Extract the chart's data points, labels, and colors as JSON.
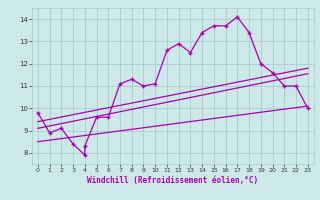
{
  "xlabel": "Windchill (Refroidissement éolien,°C)",
  "bg_color": "#cce8e8",
  "grid_color": "#aacccc",
  "line_color": "#aa00aa",
  "xlim": [
    -0.5,
    23.5
  ],
  "ylim": [
    7.5,
    14.5
  ],
  "yticks": [
    8,
    9,
    10,
    11,
    12,
    13,
    14
  ],
  "xticks": [
    0,
    1,
    2,
    3,
    4,
    5,
    6,
    7,
    8,
    9,
    10,
    11,
    12,
    13,
    14,
    15,
    16,
    17,
    18,
    19,
    20,
    21,
    22,
    23
  ],
  "main_line_x": [
    0,
    1,
    2,
    3,
    4,
    4,
    5,
    6,
    7,
    8,
    9,
    10,
    11,
    12,
    13,
    14,
    15,
    16,
    17,
    18,
    19,
    20,
    21,
    22,
    23
  ],
  "main_line_y": [
    9.8,
    8.9,
    9.1,
    8.4,
    7.9,
    8.3,
    9.6,
    9.6,
    11.1,
    11.3,
    11.0,
    11.1,
    12.6,
    12.9,
    12.5,
    13.4,
    13.7,
    13.7,
    14.1,
    13.4,
    12.0,
    11.6,
    11.0,
    11.0,
    10.0
  ],
  "line2_x": [
    0,
    23
  ],
  "line2_y": [
    9.4,
    11.8
  ],
  "line3_x": [
    0,
    23
  ],
  "line3_y": [
    9.1,
    11.55
  ],
  "line4_x": [
    0,
    23
  ],
  "line4_y": [
    8.5,
    10.1
  ],
  "xlabel_fontsize": 5.5,
  "tick_fontsize": 5.0
}
